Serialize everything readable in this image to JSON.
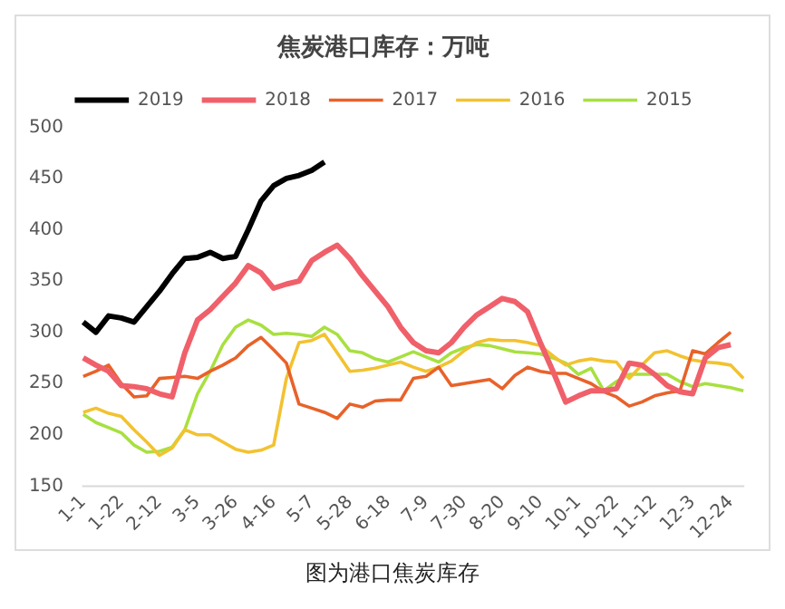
{
  "chart_data": {
    "type": "line",
    "title": "焦炭港口库存：万吨",
    "annotations": [
      "图为港口焦炭库存"
    ],
    "categories": [
      "1-1",
      null,
      null,
      "1-22",
      null,
      null,
      "2-12",
      null,
      null,
      "3-5",
      null,
      null,
      "3-26",
      null,
      null,
      "4-16",
      null,
      null,
      "5-7",
      null,
      null,
      "5-28",
      null,
      null,
      "6-18",
      null,
      null,
      "7-9",
      null,
      null,
      "7-30",
      null,
      null,
      "8-20",
      null,
      null,
      "9-10",
      null,
      null,
      "10-1",
      null,
      null,
      "10-22",
      null,
      null,
      "11-12",
      null,
      null,
      "12-3",
      null,
      null,
      "12-24",
      null
    ],
    "ylim": [
      150,
      500
    ],
    "yticks": [
      150,
      200,
      250,
      300,
      350,
      400,
      450,
      500
    ],
    "grid": false,
    "legend": "top",
    "marker": "none",
    "line_style": "solid",
    "series": [
      {
        "name": "2019",
        "color": "#000000",
        "values": [
          310,
          300,
          316,
          314,
          310,
          325,
          340,
          357,
          372,
          373,
          378,
          372,
          374,
          400,
          428,
          443,
          450,
          453,
          458,
          466,
          null,
          null,
          null,
          null,
          null,
          null,
          null,
          null,
          null,
          null,
          null,
          null,
          null,
          null,
          null,
          null,
          null,
          null,
          null,
          null,
          null,
          null,
          null,
          null,
          null,
          null,
          null,
          null,
          null,
          null,
          null,
          null,
          null
        ]
      },
      {
        "name": "2018",
        "color": "#f0606a",
        "values": [
          275,
          268,
          262,
          248,
          247,
          245,
          240,
          237,
          280,
          312,
          322,
          335,
          348,
          365,
          358,
          343,
          347,
          350,
          370,
          378,
          385,
          372,
          355,
          340,
          325,
          305,
          290,
          282,
          280,
          290,
          305,
          317,
          325,
          333,
          330,
          320,
          290,
          262,
          232,
          238,
          243,
          243,
          245,
          270,
          268,
          259,
          248,
          242,
          240,
          275,
          285,
          288,
          null
        ]
      },
      {
        "name": "2017",
        "color": "#e8622a",
        "values": [
          257,
          262,
          268,
          250,
          237,
          238,
          255,
          256,
          257,
          255,
          262,
          268,
          275,
          287,
          295,
          283,
          270,
          230,
          226,
          222,
          216,
          230,
          227,
          233,
          234,
          234,
          255,
          257,
          266,
          248,
          250,
          252,
          254,
          245,
          258,
          266,
          262,
          260,
          260,
          255,
          250,
          242,
          237,
          228,
          232,
          238,
          241,
          243,
          282,
          279,
          290,
          300,
          null
        ]
      },
      {
        "name": "2016",
        "color": "#f2c230",
        "values": [
          222,
          226,
          221,
          218,
          205,
          193,
          180,
          187,
          205,
          200,
          200,
          193,
          186,
          183,
          185,
          190,
          255,
          290,
          292,
          298,
          280,
          262,
          263,
          265,
          268,
          271,
          266,
          262,
          266,
          272,
          282,
          290,
          293,
          292,
          292,
          290,
          287,
          277,
          268,
          272,
          274,
          272,
          271,
          255,
          268,
          280,
          282,
          277,
          273,
          271,
          270,
          268,
          255
        ]
      },
      {
        "name": "2015",
        "color": "#a8e040",
        "values": [
          220,
          212,
          207,
          202,
          190,
          183,
          184,
          188,
          205,
          240,
          262,
          288,
          305,
          312,
          307,
          298,
          299,
          298,
          296,
          305,
          298,
          282,
          280,
          274,
          271,
          276,
          281,
          276,
          271,
          280,
          285,
          288,
          287,
          284,
          281,
          280,
          279,
          275,
          270,
          259,
          265,
          243,
          252,
          259,
          259,
          259,
          259,
          252,
          247,
          250,
          248,
          246,
          243
        ]
      }
    ]
  }
}
